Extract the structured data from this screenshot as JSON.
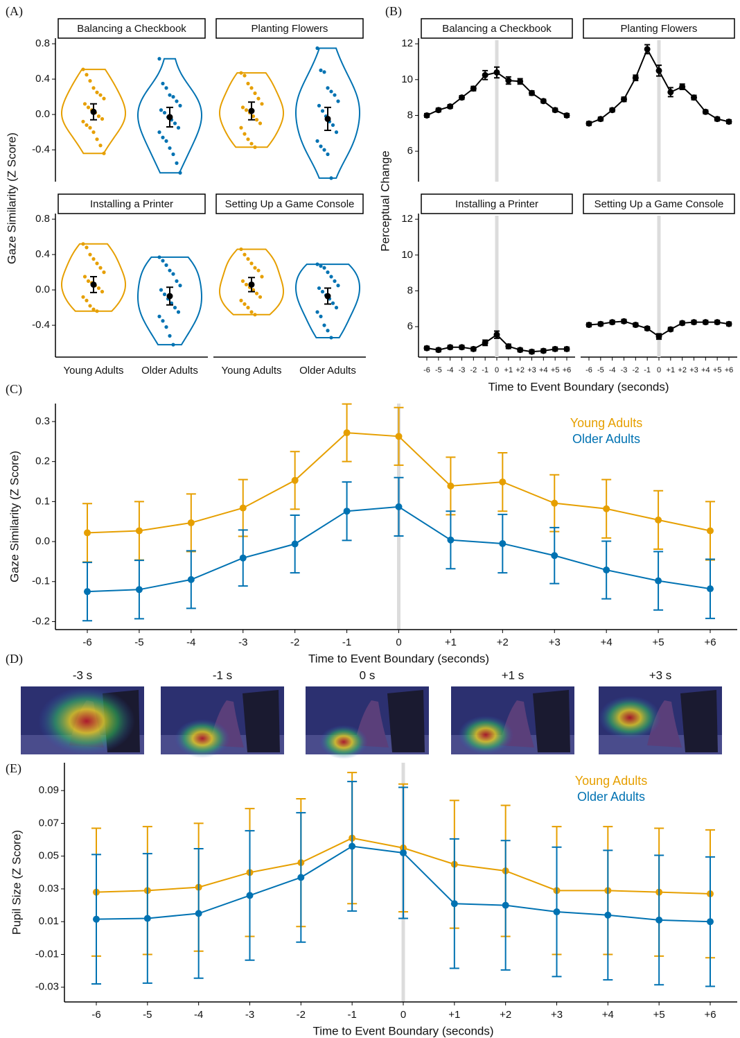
{
  "chart_data": [
    {
      "type": "violin",
      "panel_label": "(A)",
      "y_label": "Gaze Similarity (Z Score)",
      "categories": [
        "Young Adults",
        "Older Adults"
      ],
      "ylim": [
        -0.76,
        0.84
      ],
      "yticks": [
        -0.4,
        {
          "value": 0,
          "label": "0.0"
        },
        0.4,
        0.8
      ],
      "facets": [
        {
          "title": "Balancing a Checkbook",
          "groups": [
            {
              "color": "#E69F00",
              "points": [
                0.51,
                0.45,
                0.38,
                0.3,
                0.25,
                0.22,
                0.18,
                0.12,
                0.08,
                0.05,
                0.02,
                -0.02,
                -0.05,
                -0.08,
                -0.12,
                -0.15,
                -0.2,
                -0.28,
                -0.35,
                -0.44
              ],
              "mean": 0.03,
              "error": 0.09
            },
            {
              "color": "#0072B2",
              "points": [
                0.63,
                0.35,
                0.3,
                0.22,
                0.2,
                0.15,
                0.1,
                0.05,
                0.02,
                -0.03,
                -0.06,
                -0.1,
                -0.15,
                -0.2,
                -0.26,
                -0.3,
                -0.38,
                -0.45,
                -0.55,
                -0.66
              ],
              "mean": -0.03,
              "error": 0.11
            }
          ]
        },
        {
          "title": "Planting Flowers",
          "groups": [
            {
              "color": "#E69F00",
              "points": [
                0.47,
                0.44,
                0.35,
                0.3,
                0.24,
                0.18,
                0.12,
                0.08,
                0.05,
                0.02,
                -0.02,
                -0.06,
                -0.1,
                -0.15,
                -0.22,
                -0.28,
                -0.33,
                -0.37
              ],
              "mean": 0.04,
              "error": 0.1
            },
            {
              "color": "#0072B2",
              "points": [
                0.75,
                0.5,
                0.48,
                0.3,
                0.26,
                0.22,
                0.15,
                0.1,
                0.04,
                -0.02,
                -0.08,
                -0.12,
                -0.2,
                -0.3,
                -0.36,
                -0.4,
                -0.45,
                -0.72
              ],
              "mean": -0.05,
              "error": 0.13
            }
          ]
        },
        {
          "title": "Installing a Printer",
          "groups": [
            {
              "color": "#E69F00",
              "points": [
                0.52,
                0.48,
                0.4,
                0.35,
                0.3,
                0.25,
                0.2,
                0.15,
                0.1,
                0.08,
                0.05,
                0.02,
                -0.02,
                -0.08,
                -0.12,
                -0.18,
                -0.22,
                -0.24
              ],
              "mean": 0.06,
              "error": 0.09
            },
            {
              "color": "#0072B2",
              "points": [
                0.37,
                0.33,
                0.28,
                0.22,
                0.18,
                0.1,
                0.05,
                0.0,
                -0.05,
                -0.1,
                -0.15,
                -0.2,
                -0.25,
                -0.3,
                -0.35,
                -0.42,
                -0.52,
                -0.62
              ],
              "mean": -0.07,
              "error": 0.1
            }
          ]
        },
        {
          "title": "Setting Up a Game Console",
          "groups": [
            {
              "color": "#E69F00",
              "points": [
                0.46,
                0.4,
                0.35,
                0.3,
                0.25,
                0.22,
                0.15,
                0.1,
                0.06,
                0.03,
                0.0,
                -0.04,
                -0.08,
                -0.12,
                -0.16,
                -0.2,
                -0.25,
                -0.28
              ],
              "mean": 0.06,
              "error": 0.08
            },
            {
              "color": "#0072B2",
              "points": [
                0.29,
                0.27,
                0.25,
                0.2,
                0.15,
                0.1,
                0.05,
                0.02,
                -0.02,
                -0.06,
                -0.1,
                -0.15,
                -0.2,
                -0.25,
                -0.3,
                -0.4,
                -0.46,
                -0.54
              ],
              "mean": -0.07,
              "error": 0.09
            }
          ]
        }
      ]
    },
    {
      "type": "facet-line",
      "panel_label": "(B)",
      "y_label": "Perceptual  Change",
      "x_label": "Time to Event Boundary (seconds)",
      "x": [
        -6,
        -5,
        -4,
        -3,
        -2,
        -1,
        0,
        1,
        2,
        3,
        4,
        5,
        6
      ],
      "xticks": [
        -6,
        -5,
        -4,
        -3,
        -2,
        -1,
        0,
        {
          "value": 1,
          "label": "+1"
        },
        {
          "value": 2,
          "label": "+2"
        },
        {
          "value": 3,
          "label": "+3"
        },
        {
          "value": 4,
          "label": "+4"
        },
        {
          "value": 5,
          "label": "+5"
        },
        {
          "value": 6,
          "label": "+6"
        }
      ],
      "ylim": [
        4.3,
        12.2
      ],
      "yticks": [
        6,
        8,
        10,
        12
      ],
      "boundary": 0,
      "facets": [
        {
          "title": "Balancing a Checkbook",
          "color": "#000000",
          "values": [
            8.0,
            8.3,
            8.5,
            9.0,
            9.5,
            10.25,
            10.4,
            9.95,
            9.9,
            9.25,
            8.8,
            8.3,
            8.0
          ],
          "errors": [
            0.1,
            0.1,
            0.1,
            0.1,
            0.12,
            0.25,
            0.3,
            0.2,
            0.15,
            0.12,
            0.1,
            0.1,
            0.1
          ]
        },
        {
          "title": "Planting Flowers",
          "color": "#000000",
          "values": [
            7.55,
            7.8,
            8.3,
            8.9,
            10.1,
            11.7,
            10.5,
            9.3,
            9.6,
            9.0,
            8.2,
            7.8,
            7.65
          ],
          "errors": [
            0.1,
            0.1,
            0.1,
            0.12,
            0.15,
            0.25,
            0.3,
            0.25,
            0.15,
            0.12,
            0.1,
            0.1,
            0.1
          ]
        },
        {
          "title": "Installing a Printer",
          "color": "#000000",
          "values": [
            4.8,
            4.7,
            4.85,
            4.85,
            4.75,
            5.1,
            5.55,
            4.9,
            4.7,
            4.6,
            4.65,
            4.75,
            4.75
          ],
          "errors": [
            0.1,
            0.1,
            0.1,
            0.1,
            0.1,
            0.15,
            0.2,
            0.12,
            0.1,
            0.1,
            0.1,
            0.1,
            0.1
          ]
        },
        {
          "title": "Setting Up a Game Console",
          "color": "#000000",
          "values": [
            6.1,
            6.15,
            6.25,
            6.3,
            6.1,
            5.9,
            5.45,
            5.85,
            6.2,
            6.25,
            6.25,
            6.25,
            6.15
          ],
          "errors": [
            0.1,
            0.1,
            0.1,
            0.1,
            0.1,
            0.1,
            0.15,
            0.1,
            0.1,
            0.1,
            0.1,
            0.1,
            0.1
          ]
        }
      ]
    },
    {
      "type": "line",
      "panel_label": "(C)",
      "y_label": "Gaze Similarity (Z Score)",
      "x_label": "Time to Event Boundary (seconds)",
      "x": [
        -6,
        -5,
        -4,
        -3,
        -2,
        -1,
        0,
        1,
        2,
        3,
        4,
        5,
        6
      ],
      "xticks": [
        -6,
        -5,
        -4,
        -3,
        -2,
        -1,
        0,
        {
          "value": 1,
          "label": "+1"
        },
        {
          "value": 2,
          "label": "+2"
        },
        {
          "value": 3,
          "label": "+3"
        },
        {
          "value": 4,
          "label": "+4"
        },
        {
          "value": 5,
          "label": "+5"
        },
        {
          "value": 6,
          "label": "+6"
        }
      ],
      "ylim": [
        -0.22,
        0.345
      ],
      "yticks": [
        -0.2,
        -0.1,
        {
          "value": 0,
          "label": "0.0"
        },
        0.1,
        0.2,
        0.3
      ],
      "boundary": 0,
      "series": [
        {
          "name": "Young Adults",
          "color": "#E69F00",
          "values": [
            0.022,
            0.027,
            0.047,
            0.084,
            0.153,
            0.272,
            0.263,
            0.139,
            0.149,
            0.096,
            0.082,
            0.054,
            0.027
          ],
          "errors": [
            0.073,
            0.073,
            0.072,
            0.071,
            0.072,
            0.072,
            0.072,
            0.072,
            0.073,
            0.071,
            0.073,
            0.073,
            0.073
          ]
        },
        {
          "name": "Older Adults",
          "color": "#0072B2",
          "values": [
            -0.125,
            -0.12,
            -0.095,
            -0.041,
            -0.006,
            0.076,
            0.087,
            0.004,
            -0.005,
            -0.035,
            -0.071,
            -0.098,
            -0.118
          ],
          "errors": [
            0.073,
            0.073,
            0.072,
            0.07,
            0.072,
            0.073,
            0.073,
            0.072,
            0.073,
            0.07,
            0.072,
            0.073,
            0.074
          ]
        }
      ]
    },
    {
      "type": "line",
      "panel_label": "(E)",
      "y_label": "Pupil Size (Z Score)",
      "x_label": "Time to Event Boundary (seconds)",
      "x": [
        -6,
        -5,
        -4,
        -3,
        -2,
        -1,
        0,
        1,
        2,
        3,
        4,
        5,
        6
      ],
      "xticks": [
        -6,
        -5,
        -4,
        -3,
        -2,
        -1,
        0,
        {
          "value": 1,
          "label": "+1"
        },
        {
          "value": 2,
          "label": "+2"
        },
        {
          "value": 3,
          "label": "+3"
        },
        {
          "value": 4,
          "label": "+4"
        },
        {
          "value": 5,
          "label": "+5"
        },
        {
          "value": 6,
          "label": "+6"
        }
      ],
      "ylim": [
        -0.039,
        0.107
      ],
      "yticks": [
        -0.03,
        -0.01,
        0.01,
        0.03,
        0.05,
        0.07,
        0.09
      ],
      "boundary": 0,
      "series": [
        {
          "name": "Young Adults",
          "color": "#E69F00",
          "values": [
            0.028,
            0.029,
            0.031,
            0.04,
            0.046,
            0.061,
            0.055,
            0.045,
            0.041,
            0.029,
            0.029,
            0.028,
            0.027
          ],
          "errors": [
            0.039,
            0.039,
            0.039,
            0.039,
            0.039,
            0.04,
            0.039,
            0.039,
            0.04,
            0.039,
            0.039,
            0.039,
            0.039
          ]
        },
        {
          "name": "Older Adults",
          "color": "#0072B2",
          "values": [
            0.0115,
            0.012,
            0.015,
            0.026,
            0.037,
            0.056,
            0.052,
            0.021,
            0.02,
            0.016,
            0.014,
            0.011,
            0.01
          ],
          "errors": [
            0.0395,
            0.0395,
            0.0395,
            0.0395,
            0.0395,
            0.0395,
            0.04,
            0.0395,
            0.0395,
            0.0395,
            0.0395,
            0.0395,
            0.0395
          ]
        }
      ]
    }
  ],
  "panel_d": {
    "panel_label": "(D)",
    "frames": [
      "-3 s",
      "-1 s",
      "0 s",
      "+1 s",
      "+3 s"
    ]
  }
}
